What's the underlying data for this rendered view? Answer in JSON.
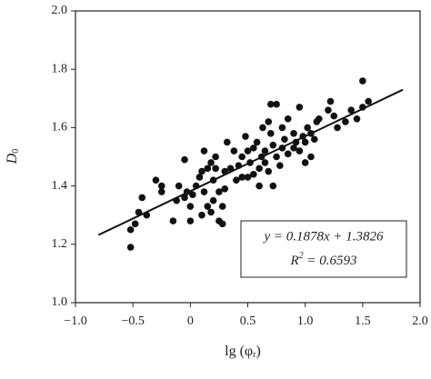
{
  "chart_data": {
    "type": "scatter",
    "x_label": {
      "text": "lg (φ",
      "subscript": "r",
      "close": ")"
    },
    "y_label": {
      "text": "D",
      "subscript": "0"
    },
    "xlim": [
      -1.0,
      2.0
    ],
    "ylim": [
      1.0,
      2.0
    ],
    "xticks": [
      {
        "value": -1.0,
        "label": "−1.0"
      },
      {
        "value": -0.5,
        "label": "−0.5"
      },
      0,
      0.5,
      {
        "value": 1.0,
        "label": "1.0"
      },
      1.5,
      {
        "value": 2.0,
        "label": "2.0"
      }
    ],
    "yticks": [
      {
        "value": 1.0,
        "label": "1.0"
      },
      1.2,
      1.4,
      1.6,
      1.8,
      {
        "value": 2.0,
        "label": "2.0"
      }
    ],
    "color": "#111111",
    "x": [
      -0.52,
      -0.52,
      -0.48,
      -0.45,
      -0.42,
      -0.38,
      -0.3,
      -0.25,
      -0.25,
      -0.15,
      -0.12,
      -0.1,
      -0.05,
      -0.05,
      -0.03,
      0.0,
      0.0,
      0.02,
      0.05,
      0.08,
      0.1,
      0.1,
      0.12,
      0.12,
      0.15,
      0.15,
      0.18,
      0.18,
      0.2,
      0.2,
      0.22,
      0.22,
      0.25,
      0.25,
      0.28,
      0.28,
      0.3,
      0.3,
      0.32,
      0.35,
      0.38,
      0.4,
      0.42,
      0.45,
      0.45,
      0.48,
      0.5,
      0.5,
      0.52,
      0.55,
      0.55,
      0.58,
      0.6,
      0.6,
      0.62,
      0.63,
      0.65,
      0.65,
      0.68,
      0.68,
      0.7,
      0.7,
      0.72,
      0.72,
      0.75,
      0.75,
      0.78,
      0.8,
      0.8,
      0.82,
      0.85,
      0.85,
      0.9,
      0.9,
      0.92,
      0.95,
      0.95,
      0.98,
      1.0,
      1.0,
      1.02,
      1.05,
      1.05,
      1.08,
      1.1,
      1.12,
      1.2,
      1.22,
      1.25,
      1.28,
      1.35,
      1.4,
      1.45,
      1.5,
      1.5,
      1.55
    ],
    "values": [
      1.19,
      1.25,
      1.27,
      1.31,
      1.36,
      1.3,
      1.42,
      1.4,
      1.38,
      1.28,
      1.35,
      1.4,
      1.49,
      1.36,
      1.38,
      1.28,
      1.33,
      1.37,
      1.4,
      1.43,
      1.45,
      1.3,
      1.38,
      1.52,
      1.33,
      1.46,
      1.31,
      1.48,
      1.35,
      1.42,
      1.46,
      1.5,
      1.38,
      1.28,
      1.27,
      1.33,
      1.45,
      1.39,
      1.55,
      1.46,
      1.52,
      1.42,
      1.47,
      1.43,
      1.5,
      1.57,
      1.52,
      1.43,
      1.48,
      1.44,
      1.53,
      1.55,
      1.4,
      1.46,
      1.5,
      1.6,
      1.48,
      1.52,
      1.45,
      1.62,
      1.58,
      1.68,
      1.54,
      1.4,
      1.68,
      1.5,
      1.47,
      1.53,
      1.6,
      1.56,
      1.51,
      1.63,
      1.53,
      1.58,
      1.55,
      1.52,
      1.67,
      1.57,
      1.48,
      1.55,
      1.6,
      1.58,
      1.5,
      1.56,
      1.62,
      1.63,
      1.66,
      1.69,
      1.64,
      1.6,
      1.62,
      1.66,
      1.63,
      1.76,
      1.67,
      1.69
    ],
    "fit_line": {
      "x": [
        -0.8,
        1.85
      ],
      "values": [
        1.232,
        1.73
      ]
    },
    "annotations": [
      {
        "text": "y = 0.1878x + 1.3826"
      },
      {
        "text": "R",
        "superscript": "2",
        "rest": " = 0.6593"
      }
    ]
  }
}
